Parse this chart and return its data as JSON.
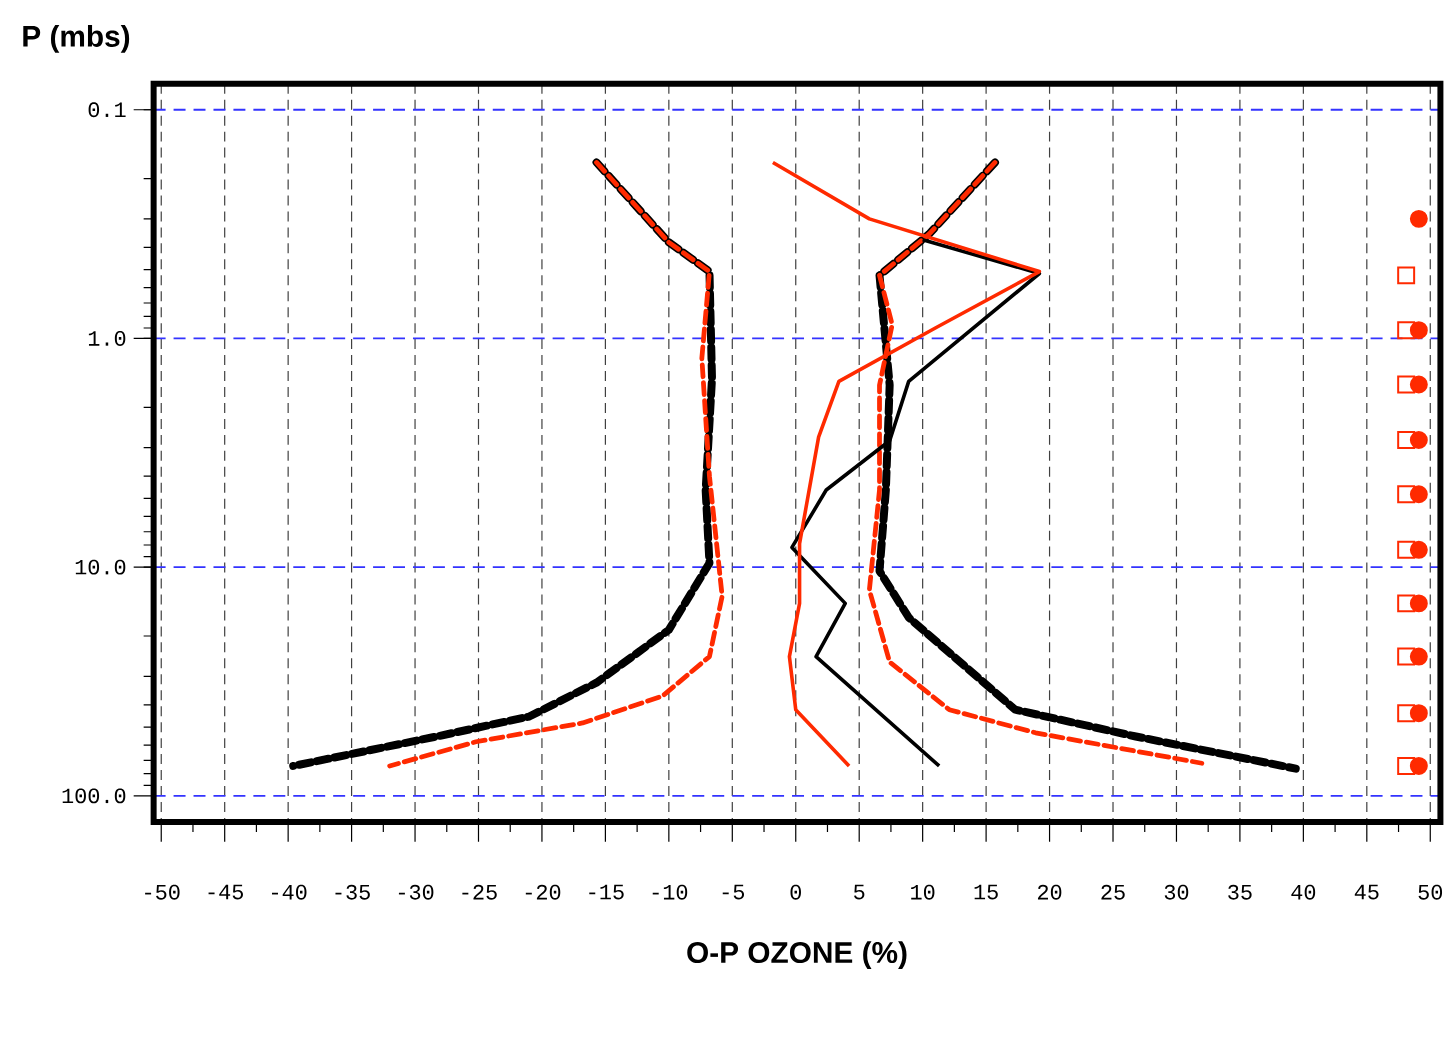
{
  "chart_data": {
    "type": "line",
    "xlabel": "O-P OZONE (%)",
    "ylabel": "P (mbs)",
    "xlim": [
      -50.6,
      50.8
    ],
    "ylim": [
      130,
      0.077
    ],
    "log": "y",
    "grid": true,
    "xticks": [
      -50,
      -45,
      -40,
      -35,
      -30,
      -25,
      -20,
      -15,
      -10,
      -5,
      0,
      5,
      10,
      15,
      20,
      25,
      30,
      35,
      40,
      45,
      50
    ],
    "yticks": [
      {
        "value": 0.1,
        "label": "0.1"
      },
      {
        "value": 1,
        "label": "1.0"
      },
      {
        "value": 10,
        "label": "10.0"
      },
      {
        "value": 100,
        "label": "100.0"
      }
    ],
    "series": [
      {
        "color": "#000000",
        "line_style": "dashed",
        "x": [
          -15.7,
          -10,
          -6.8,
          -6.6,
          -7.1,
          -6.8,
          -10,
          -15.7,
          -21,
          -28.3,
          -39.6
        ],
        "values": [
          0.17,
          0.38,
          0.51,
          1.5,
          4.6,
          9.6,
          18.8,
          32,
          45,
          55,
          74
        ]
      },
      {
        "color": "#ff2a00",
        "line_style": "dashed",
        "x": [
          -15.7,
          -10,
          -6.8,
          -7.4,
          -6.8,
          -5.8,
          -6.8,
          -10.5,
          -16.8,
          -25.2,
          -32
        ],
        "values": [
          0.17,
          0.38,
          0.51,
          1.22,
          4.0,
          13.4,
          24.6,
          36.6,
          48,
          58,
          74
        ]
      },
      {
        "color": "#000000",
        "line_style": "dashed",
        "x": [
          15.7,
          10.5,
          6.6,
          7.4,
          7.1,
          6.6,
          8.9,
          17.3,
          26.8,
          39.4
        ],
        "values": [
          0.17,
          0.35,
          0.53,
          1.6,
          4.6,
          10.4,
          16.6,
          42,
          55,
          76
        ]
      },
      {
        "color": "#ff2a00",
        "line_style": "dashed",
        "x": [
          15.7,
          10.5,
          6.6,
          7.6,
          6.6,
          6.6,
          5.8,
          7.4,
          12.1,
          18.9,
          32
        ],
        "values": [
          0.17,
          0.35,
          0.53,
          0.87,
          1.6,
          4.6,
          12.6,
          26,
          42,
          53,
          72
        ]
      },
      {
        "color": "#000000",
        "line_style": "solid",
        "x": [
          10,
          19.2,
          8.9,
          7.4,
          2.4,
          -0.3,
          3.9,
          1.6,
          11.3
        ],
        "values": [
          0.37,
          0.52,
          1.54,
          2.8,
          4.6,
          8.2,
          14.4,
          24.6,
          74
        ]
      },
      {
        "color": "#ff2a00",
        "line_style": "solid",
        "x": [
          -1.8,
          5.8,
          19.2,
          11,
          3.4,
          1.8,
          0.3,
          0.3,
          -0.5,
          0,
          4.2
        ],
        "values": [
          0.17,
          0.3,
          0.51,
          0.9,
          1.54,
          2.7,
          7.9,
          14.4,
          24.6,
          42,
          74
        ]
      },
      {
        "type": "scatter",
        "color": "#ff2a00",
        "marker": "circle",
        "x": [
          49.1,
          49.1,
          49.1,
          49.1,
          49.1,
          49.1,
          49.1,
          49.1,
          49.1,
          49.1
        ],
        "values": [
          0.3,
          0.92,
          1.59,
          2.78,
          4.8,
          8.4,
          14.4,
          24.6,
          43.5,
          74
        ]
      },
      {
        "type": "scatter",
        "color": "#ff2a00",
        "marker": "square",
        "x": [
          48.1,
          48.1,
          48.1,
          48.1,
          48.1,
          48.1,
          48.1,
          48.1,
          48.1,
          48.1
        ],
        "values": [
          0.53,
          0.92,
          1.59,
          2.78,
          4.8,
          8.4,
          14.4,
          24.6,
          43.5,
          74
        ]
      }
    ]
  }
}
